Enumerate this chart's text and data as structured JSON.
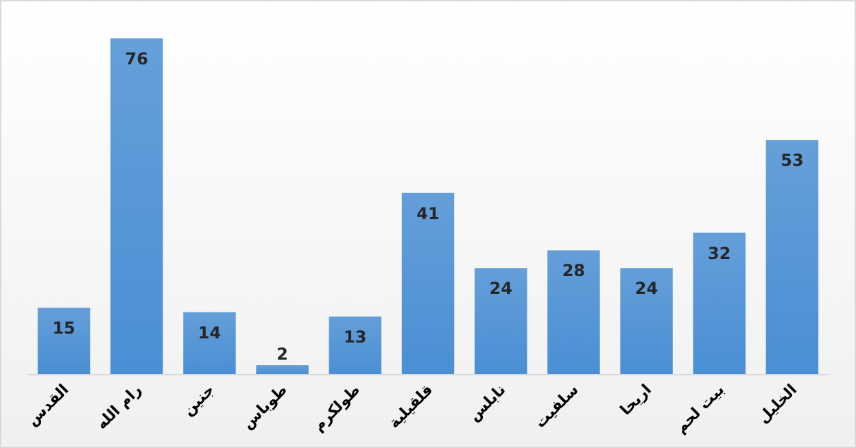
{
  "chart_data": {
    "type": "bar",
    "categories": [
      "القدس",
      "رام الله",
      "جنين",
      "طوباس",
      "طولكرم",
      "قلقيلية",
      "نابلس",
      "سلفيت",
      "اريحا",
      "بيت لحم",
      "الخليل"
    ],
    "values": [
      15,
      76,
      14,
      2,
      13,
      41,
      24,
      28,
      24,
      32,
      53
    ],
    "color": "#4a8fd4",
    "data_labels": true
  }
}
